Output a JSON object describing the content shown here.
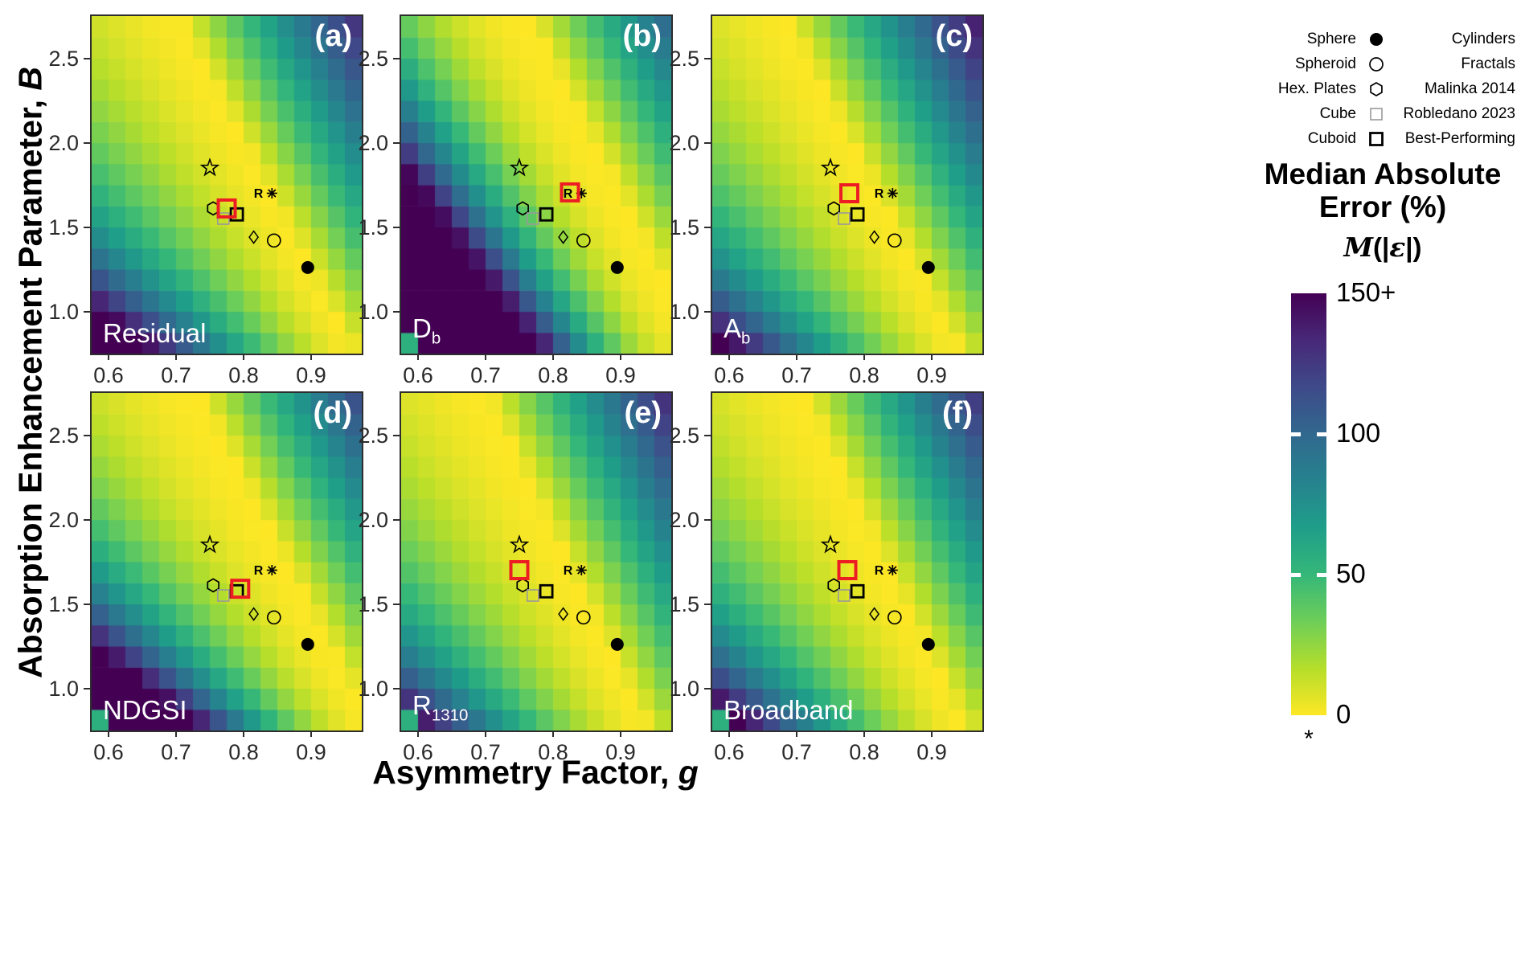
{
  "figure": {
    "x_axis_title": {
      "prefix": "Asymmetry Factor, ",
      "symbol": "g"
    },
    "y_axis_title": {
      "prefix": "Absorption Enhancement Parameter, ",
      "symbol": "B"
    }
  },
  "legend": {
    "rows": [
      [
        {
          "label": "Sphere",
          "marker": "sphere"
        },
        {
          "label": "Cylinders",
          "marker": "cylinder"
        }
      ],
      [
        {
          "label": "Spheroid",
          "marker": "spheroid"
        },
        {
          "label": "Fractals",
          "marker": "fractal"
        }
      ],
      [
        {
          "label": "Hex. Plates",
          "marker": "hexplate"
        },
        {
          "label": "Malinka 2014",
          "marker": "malinka"
        }
      ],
      [
        {
          "label": "Cube",
          "marker": "cube"
        },
        {
          "label": "Robledano 2023",
          "marker": "robledano"
        }
      ],
      [
        {
          "label": "Cuboid",
          "marker": "cuboid"
        },
        {
          "label": "Best-Performing",
          "marker": "best"
        }
      ]
    ]
  },
  "colorbar": {
    "title_lines": [
      "Median Absolute",
      "Error (%)"
    ],
    "formula": {
      "m": "M",
      "open": "(|",
      "eps": "ε",
      "close": "|)"
    },
    "ticks": [
      {
        "label": "150+",
        "value": 150,
        "dash": false
      },
      {
        "label": "100",
        "value": 100,
        "dash": true
      },
      {
        "label": "50",
        "value": 50,
        "dash": true
      },
      {
        "label": "0",
        "value": 0,
        "dash": false
      }
    ],
    "footnote": "*"
  },
  "chart_data": {
    "type": "heatmap",
    "x": {
      "label": "Asymmetry Factor, g",
      "min": 0.575,
      "max": 0.975,
      "ticks": [
        0.6,
        0.7,
        0.8,
        0.9
      ],
      "cells": 16
    },
    "y": {
      "label": "Absorption Enhancement Parameter, B",
      "min": 0.75,
      "max": 2.75,
      "ticks": [
        1.0,
        1.5,
        2.0,
        2.5
      ],
      "cells": 16
    },
    "value": {
      "label": "Median Absolute Error (%)",
      "min": 0,
      "max": 150,
      "max_label": "150+"
    },
    "colormap": [
      "#440154",
      "#482878",
      "#3e4a89",
      "#31688e",
      "#26828e",
      "#1f9e89",
      "#35b779",
      "#6ece58",
      "#b5de2b",
      "#fde725"
    ],
    "accent_red": "#ed1c24",
    "robledano_glyph": "R",
    "markers": [
      {
        "name": "Fractals",
        "type": "fractal",
        "g": 0.75,
        "B": 1.85
      },
      {
        "name": "Hex. Plates",
        "type": "hexplate",
        "g": 0.755,
        "B": 1.61
      },
      {
        "name": "Cube",
        "type": "cube",
        "g": 0.77,
        "B": 1.55
      },
      {
        "name": "Cuboid",
        "type": "cuboid",
        "g": 0.79,
        "B": 1.575
      },
      {
        "name": "Robledano 2023",
        "type": "robledano",
        "g": 0.822,
        "B": 1.7
      },
      {
        "name": "Malinka 2014",
        "type": "malinka",
        "g": 0.842,
        "B": 1.7
      },
      {
        "name": "Cylinders",
        "type": "cylinder",
        "g": 0.815,
        "B": 1.44
      },
      {
        "name": "Spheroid",
        "type": "spheroid",
        "g": 0.845,
        "B": 1.42
      },
      {
        "name": "Sphere",
        "type": "sphere",
        "g": 0.895,
        "B": 1.26
      }
    ],
    "panels": [
      {
        "id": "a",
        "letter": "(a)",
        "metric": {
          "text": "Residual",
          "sub": ""
        },
        "best": {
          "g": 0.775,
          "B": 1.61
        },
        "model": {
          "c0": 1.06,
          "c1": -0.13,
          "n0": 0.116,
          "n1": 0.23,
          "gneg": 1.5,
          "p0": 0.3,
          "p1": 0,
          "gpos": 1.0
        },
        "anomalies": []
      },
      {
        "id": "b",
        "letter": "(b)",
        "metric": {
          "text": "D",
          "sub": "b"
        },
        "best": {
          "g": 0.825,
          "B": 1.705
        },
        "model": {
          "c0": 1.12,
          "c1": -0.13,
          "n0": 0.19,
          "n1": 0.06,
          "gneg": 2.2,
          "p0": 0.3,
          "p1": 0,
          "gpos": 1.0
        },
        "anomalies": [
          {
            "ix": 0,
            "iy": 0,
            "v": 55
          }
        ]
      },
      {
        "id": "c",
        "letter": "(c)",
        "metric": {
          "text": "A",
          "sub": "b"
        },
        "best": {
          "g": 0.778,
          "B": 1.7
        },
        "model": {
          "c0": 1.04,
          "c1": -0.13,
          "n0": 0.15,
          "n1": 0.23,
          "gneg": 1.5,
          "p0": 0.3,
          "p1": 0,
          "gpos": 1.0
        },
        "anomalies": []
      },
      {
        "id": "d",
        "letter": "(d)",
        "metric": {
          "text": "NDGSI",
          "sub": ""
        },
        "best": {
          "g": 0.795,
          "B": 1.59
        },
        "model": {
          "c0": 1.09,
          "c1": -0.13,
          "n0": 0.1,
          "n1": 0.2,
          "gneg": 1.8,
          "p0": 0.3,
          "p1": 0,
          "gpos": 1.0
        },
        "anomalies": [
          {
            "ix": 0,
            "iy": 0,
            "v": 55
          }
        ]
      },
      {
        "id": "e",
        "letter": "(e)",
        "metric": {
          "text": "R",
          "sub": "1310"
        },
        "best": {
          "g": 0.75,
          "B": 1.7
        },
        "model": {
          "c0": 1.03,
          "c1": -0.12,
          "n0": 0.15,
          "n1": 0.23,
          "gneg": 1.6,
          "p0": 0.3,
          "p1": 0,
          "gpos": 1.0
        },
        "anomalies": [
          {
            "ix": 0,
            "iy": 0,
            "v": 55
          }
        ]
      },
      {
        "id": "f",
        "letter": "(f)",
        "metric": {
          "text": "Broadband",
          "sub": ""
        },
        "best": {
          "g": 0.775,
          "B": 1.7
        },
        "model": {
          "c0": 1.04,
          "c1": -0.12,
          "n0": 0.14,
          "n1": 0.23,
          "gneg": 1.6,
          "p0": 0.3,
          "p1": 0,
          "gpos": 1.0
        },
        "anomalies": [
          {
            "ix": 0,
            "iy": 0,
            "v": 55
          }
        ]
      }
    ],
    "note": "Cell values estimated from colors: v = 150*min(1,(|g-(c0+c1*B)|/W)^gamma), W = n0+n1*B left of band, p0+p1*B right of band."
  }
}
